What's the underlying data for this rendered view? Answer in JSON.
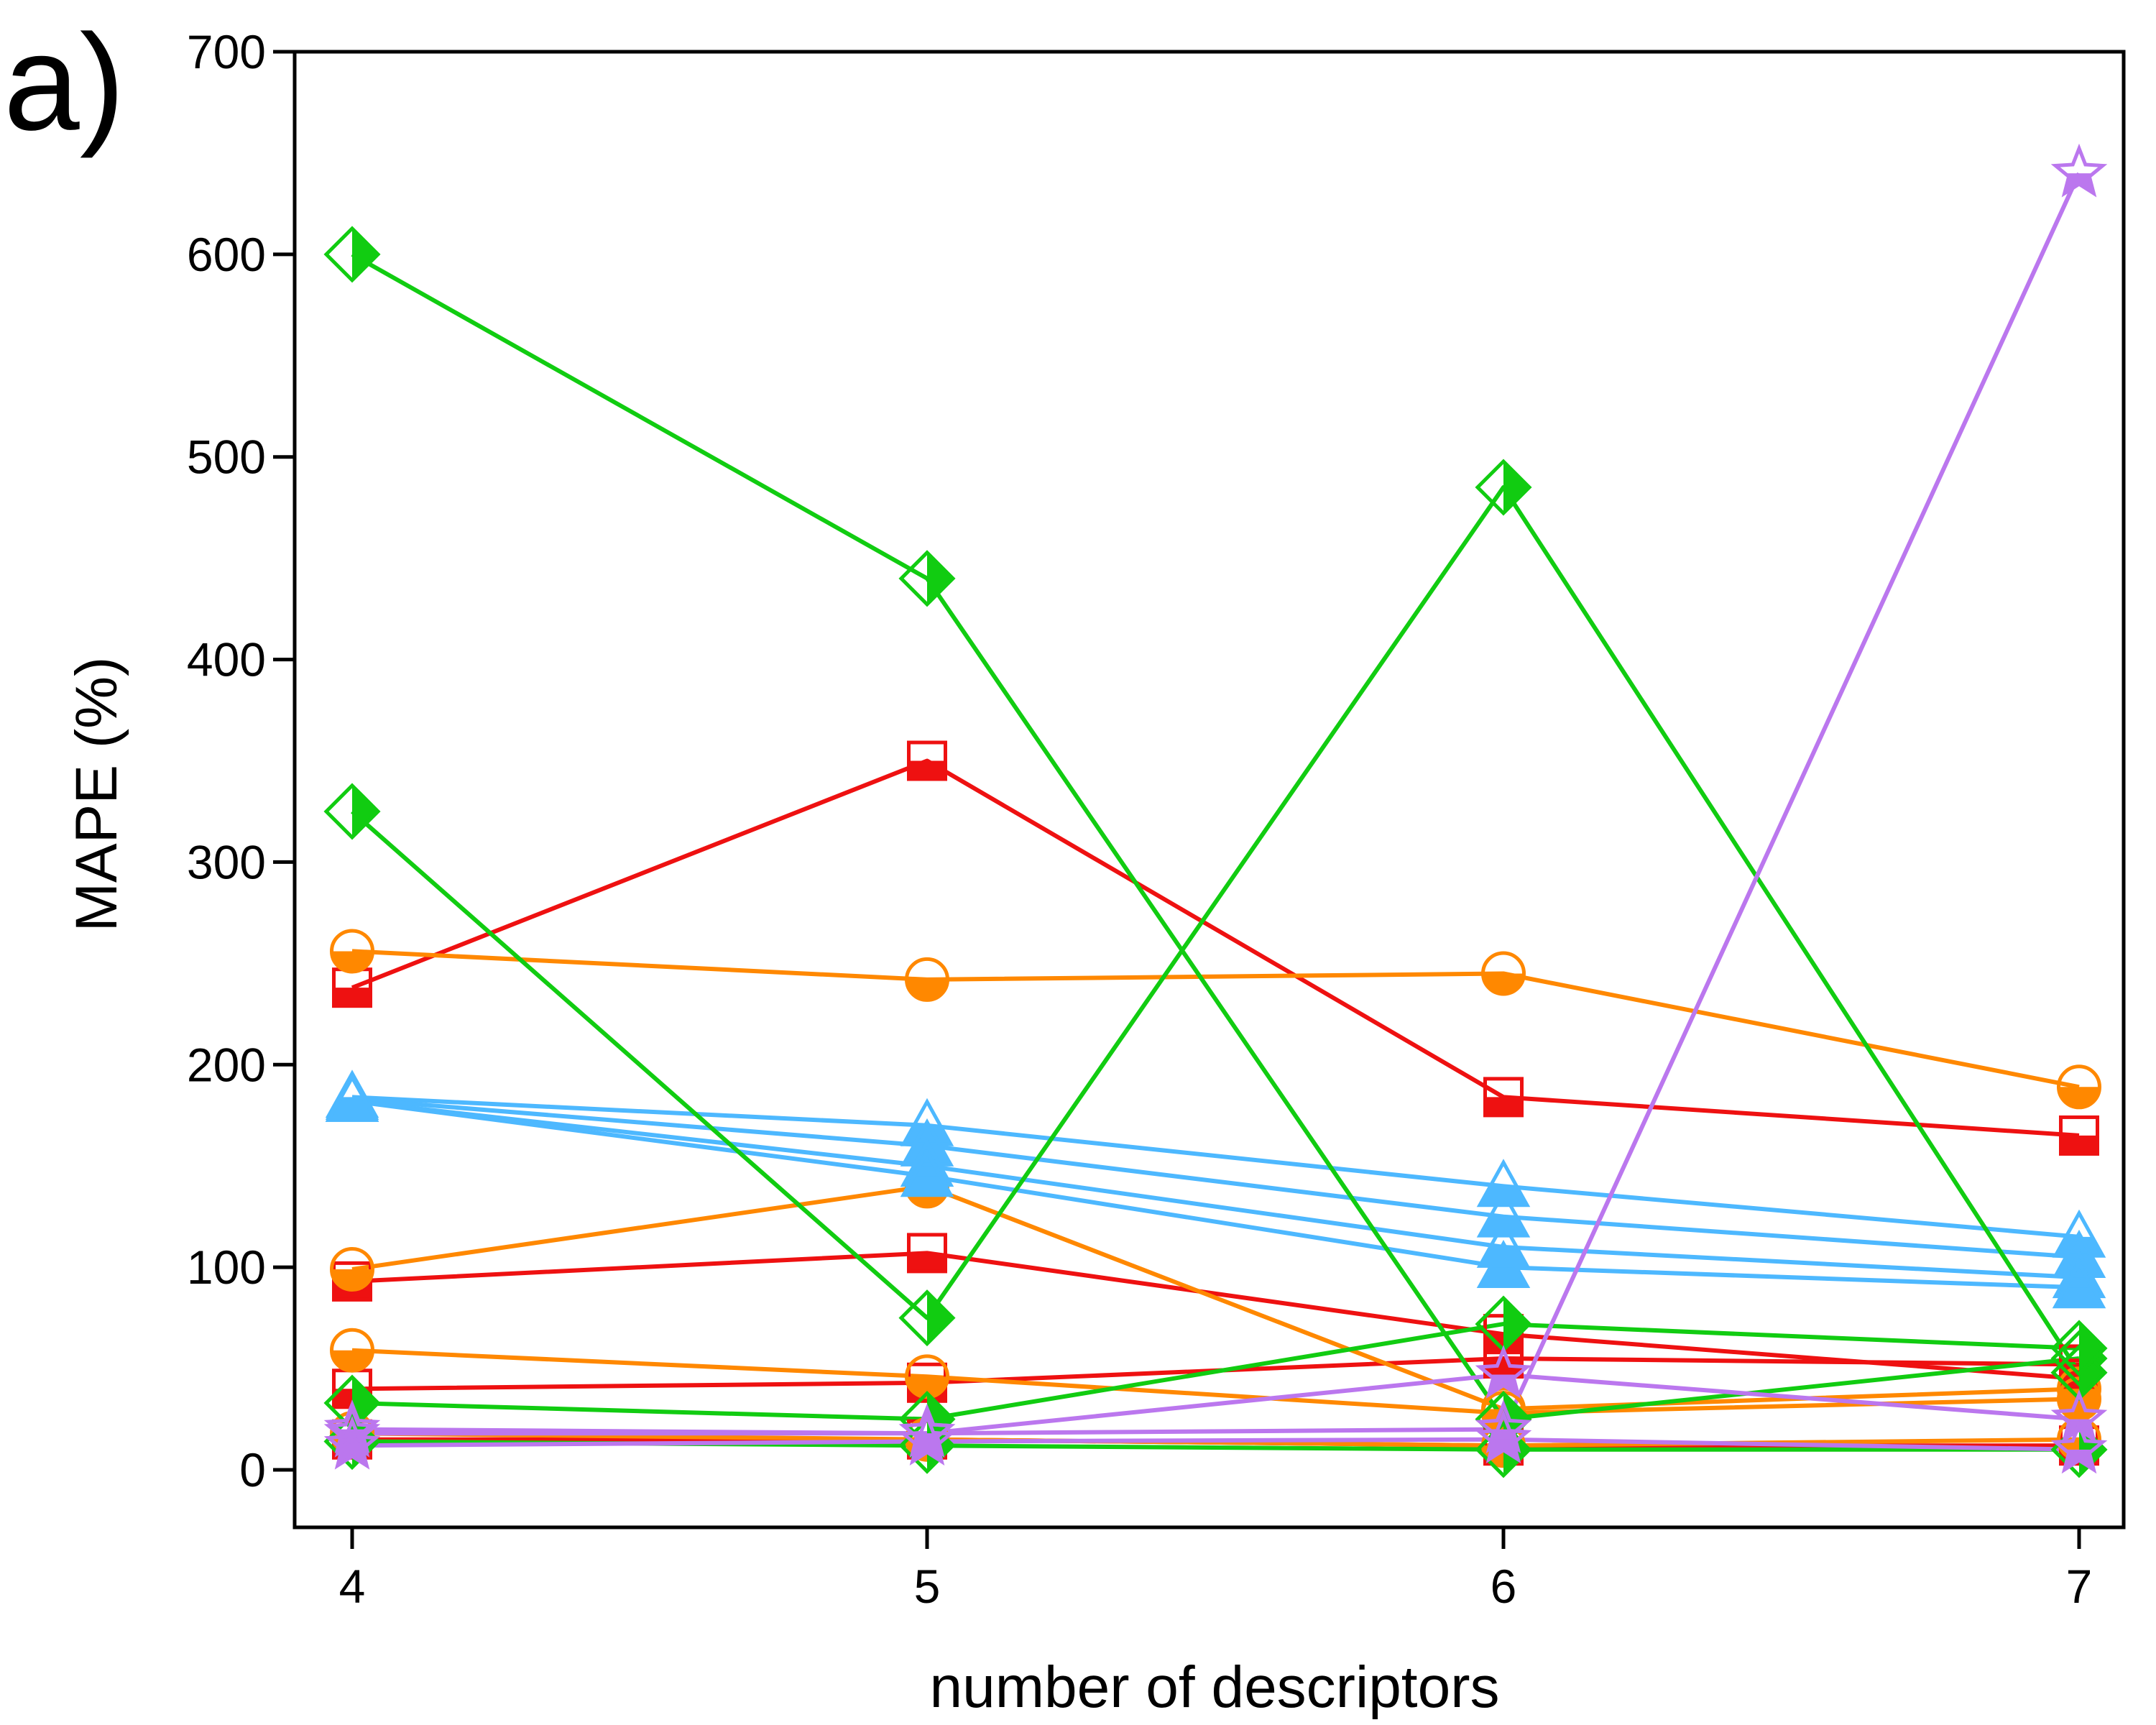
{
  "panel_label": "a)",
  "chart_data": {
    "type": "line",
    "title": "",
    "xlabel": "number of descriptors",
    "ylabel": "MAPE (%)",
    "x": [
      4,
      5,
      6,
      7
    ],
    "x_ticks": [
      "4",
      "5",
      "6",
      "7"
    ],
    "y_ticks": [
      "0",
      "100",
      "200",
      "300",
      "400",
      "500",
      "600",
      "700"
    ],
    "ylim": [
      0,
      700
    ],
    "grid": false,
    "colors": {
      "red": "#ee1111",
      "orange": "#ff8800",
      "blue": "#4db8ff",
      "green": "#11cc11",
      "purple": "#bb77ee"
    },
    "series": [
      {
        "color": "red",
        "marker": "square",
        "values": [
          238,
          350,
          184,
          165
        ]
      },
      {
        "color": "red",
        "marker": "square",
        "values": [
          93,
          107,
          67,
          45
        ]
      },
      {
        "color": "red",
        "marker": "square",
        "values": [
          40,
          43,
          55,
          52
        ]
      },
      {
        "color": "red",
        "marker": "square",
        "values": [
          15,
          15,
          12,
          12
        ]
      },
      {
        "color": "orange",
        "marker": "circle",
        "values": [
          256,
          242,
          245,
          189
        ]
      },
      {
        "color": "orange",
        "marker": "circle",
        "values": [
          99,
          140,
          30,
          40
        ]
      },
      {
        "color": "orange",
        "marker": "circle",
        "values": [
          59,
          46,
          28,
          35
        ]
      },
      {
        "color": "orange",
        "marker": "circle",
        "values": [
          18,
          15,
          12,
          15
        ]
      },
      {
        "color": "blue",
        "marker": "triangle",
        "values": [
          184,
          170,
          140,
          115
        ]
      },
      {
        "color": "blue",
        "marker": "triangle",
        "values": [
          183,
          160,
          125,
          105
        ]
      },
      {
        "color": "blue",
        "marker": "triangle",
        "values": [
          182,
          150,
          110,
          95
        ]
      },
      {
        "color": "blue",
        "marker": "triangle",
        "values": [
          182,
          145,
          100,
          90
        ]
      },
      {
        "color": "green",
        "marker": "diamond",
        "values": [
          600,
          440,
          25,
          55
        ]
      },
      {
        "color": "green",
        "marker": "diamond",
        "values": [
          325,
          75,
          485,
          48
        ]
      },
      {
        "color": "green",
        "marker": "diamond",
        "values": [
          33,
          25,
          72,
          60
        ]
      },
      {
        "color": "green",
        "marker": "diamond",
        "values": [
          14,
          12,
          10,
          10
        ]
      },
      {
        "color": "purple",
        "marker": "star",
        "values": [
          18,
          18,
          20,
          640
        ]
      },
      {
        "color": "purple",
        "marker": "star",
        "values": [
          20,
          18,
          47,
          25
        ]
      },
      {
        "color": "purple",
        "marker": "star",
        "values": [
          12,
          14,
          15,
          10
        ]
      }
    ]
  }
}
